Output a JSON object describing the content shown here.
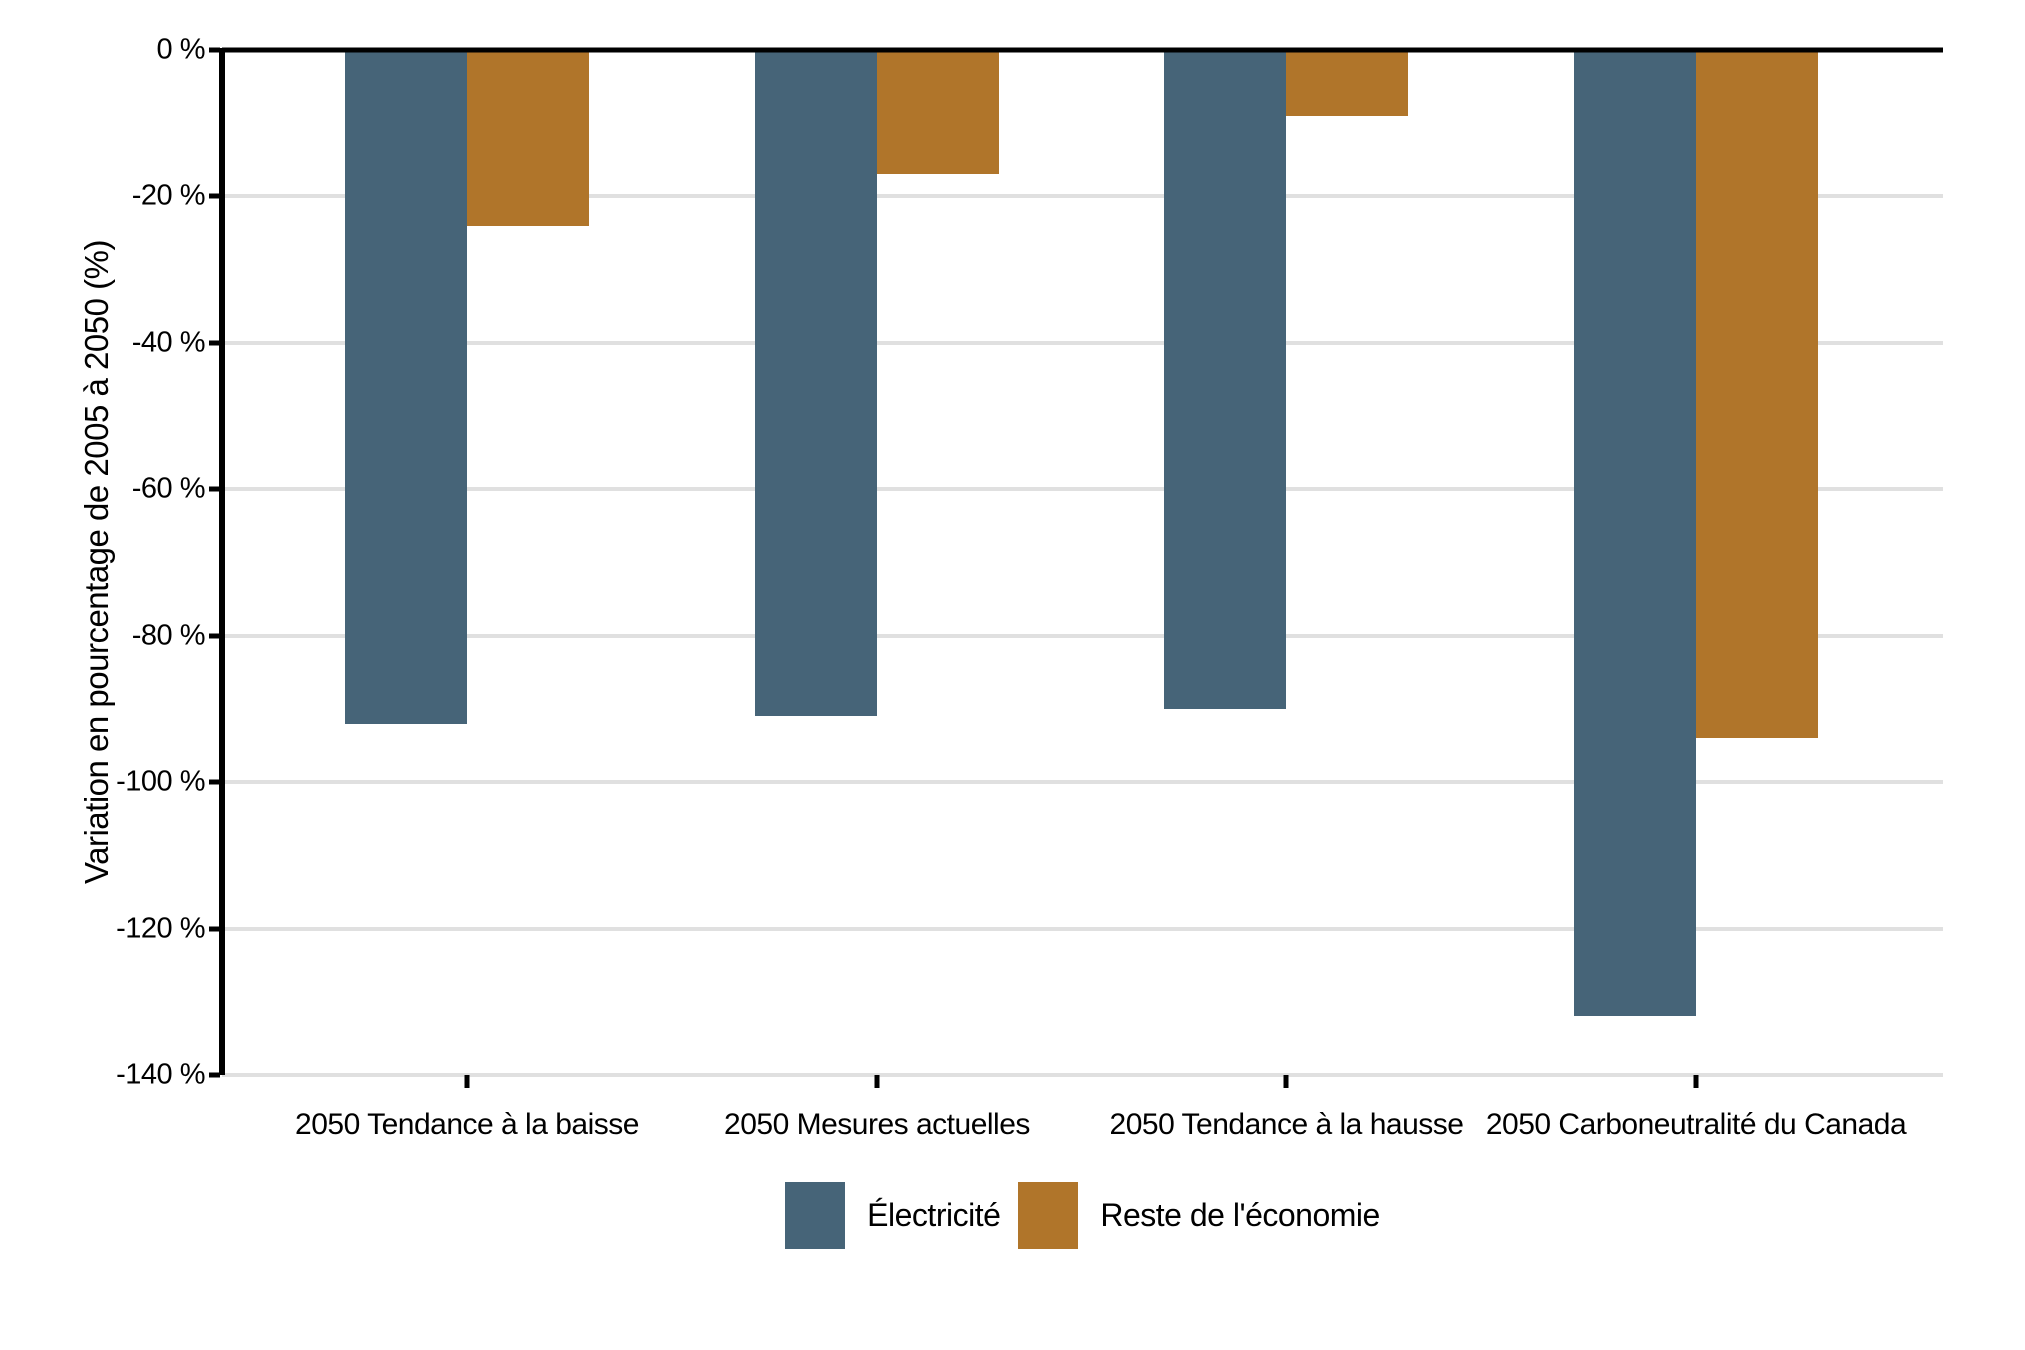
{
  "chart_data": {
    "type": "bar",
    "title": "",
    "ylabel": "Variation en pourcentage de 2005 à 2050 (%)",
    "xlabel": "",
    "categories": [
      "2050 Tendance à la baisse",
      "2050 Mesures actuelles",
      "2050 Tendance à la hausse",
      "2050 Carboneutralité du Canada"
    ],
    "series": [
      {
        "name": "Électricité",
        "color": "#466478",
        "values": [
          -92,
          -91,
          -90,
          -132
        ]
      },
      {
        "name": "Reste de l'économie",
        "color": "#b0752a",
        "values": [
          -24,
          -17,
          -9,
          -94
        ]
      }
    ],
    "ylim": [
      -140,
      0
    ],
    "ytick_step": 20,
    "ytick_labels": [
      "0 %",
      "-20 %",
      "-40 %",
      "-60 %",
      "-80 %",
      "-100 %",
      "-120 %",
      "-140 %"
    ],
    "grid": true,
    "gridline_color": "#e0e0e0",
    "axis_color": "#000000",
    "legend_position": "bottom"
  }
}
